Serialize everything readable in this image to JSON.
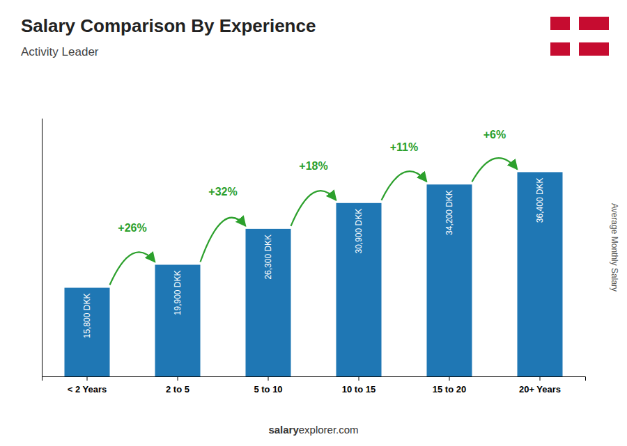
{
  "chart_data": {
    "type": "bar",
    "title": "Salary Comparison By Experience",
    "subtitle": "Activity Leader",
    "ylabel": "Average Monthly Salary",
    "categories": [
      "< 2 Years",
      "2 to 5",
      "5 to 10",
      "10 to 15",
      "15 to 20",
      "20+ Years"
    ],
    "values": [
      15800,
      19900,
      26300,
      30900,
      34200,
      36400
    ],
    "value_labels": [
      "15,800 DKK",
      "19,900 DKK",
      "26,300 DKK",
      "30,900 DKK",
      "34,200 DKK",
      "36,400 DKK"
    ],
    "data_labels": true,
    "ylim": [
      0,
      46000
    ],
    "tick_labels": "x",
    "grid": false,
    "annotations": [
      {
        "text": "+26%",
        "from": "< 2 Years",
        "to": "2 to 5"
      },
      {
        "text": "+32%",
        "from": "2 to 5",
        "to": "5 to 10"
      },
      {
        "text": "+18%",
        "from": "5 to 10",
        "to": "10 to 15"
      },
      {
        "text": "+11%",
        "from": "10 to 15",
        "to": "15 to 20"
      },
      {
        "text": "+6%",
        "from": "15 to 20",
        "to": "20+ Years"
      }
    ],
    "footer": [
      "salary",
      "explorer.com"
    ]
  }
}
